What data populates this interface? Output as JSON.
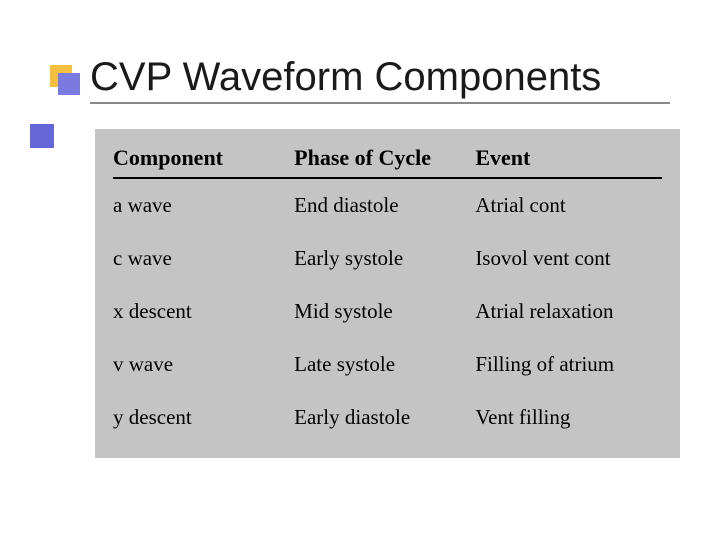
{
  "slide": {
    "title": "CVP Waveform Components",
    "accent_color_yellow": "#f5c040",
    "accent_color_purple": "#7a7ae0",
    "side_accent_color": "#6666d8",
    "background_color": "#ffffff",
    "title_fontsize": 40,
    "title_color": "#1a1a1a"
  },
  "table": {
    "type": "table",
    "background_color": "#c4c4c4",
    "header_fontsize": 22,
    "cell_fontsize": 21,
    "text_color": "#000000",
    "columns": [
      {
        "label": "Component",
        "width": "33%"
      },
      {
        "label": "Phase of Cycle",
        "width": "33%"
      },
      {
        "label": "Event",
        "width": "34%"
      }
    ],
    "rows": [
      [
        "a wave",
        "End diastole",
        "Atrial cont"
      ],
      [
        "c wave",
        "Early systole",
        "Isovol vent cont"
      ],
      [
        "x descent",
        "Mid systole",
        "Atrial relaxation"
      ],
      [
        "v wave",
        "Late systole",
        "Filling of atrium"
      ],
      [
        "y descent",
        "Early diastole",
        "Vent filling"
      ]
    ]
  }
}
